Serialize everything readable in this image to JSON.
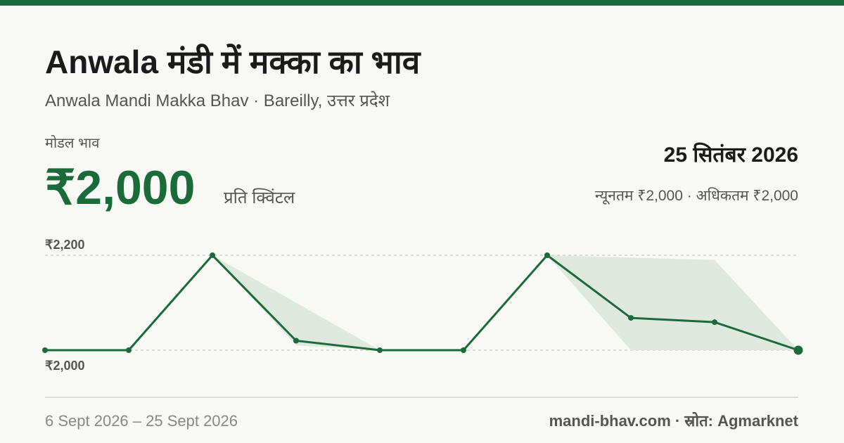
{
  "title": "Anwala मंडी में मक्का का भाव",
  "subtitle": "Anwala Mandi Makka Bhav · Bareilly, उत्तर प्रदेश",
  "price_label": "मोडल भाव",
  "price": "₹2,000",
  "unit": "प्रति क्विंटल",
  "date": "25 सितंबर 2026",
  "range": "न्यूनतम ₹2,000 · अधिकतम ₹2,000",
  "footer": {
    "dates": "6 Sept 2026 – 25 Sept 2026",
    "source": "mandi-bhav.com · स्रोत: Agmarknet"
  },
  "chart_data": {
    "type": "line",
    "categories": [
      null,
      null,
      null,
      null,
      null,
      null,
      null,
      null,
      null,
      null
    ],
    "series": [
      {
        "color": "#1a6b3a",
        "values": [
          2000,
          2000,
          2200,
          2020,
          2000,
          2000,
          2200,
          2068,
          2059,
          2000
        ]
      }
    ],
    "band": {
      "color": "#dfe8df",
      "min": [
        2000,
        2000,
        2200,
        2010,
        2000,
        2000,
        2200,
        2000,
        2000,
        2000
      ],
      "max": [
        2000,
        2000,
        2200,
        2100,
        2000,
        2000,
        2200,
        2195,
        2190,
        2000
      ]
    },
    "ylim": [
      2000,
      2200
    ],
    "yticks": [
      {
        "value": 2000,
        "label": "₹2,000"
      },
      {
        "value": 2200,
        "label": "₹2,200"
      }
    ],
    "grid": true
  }
}
